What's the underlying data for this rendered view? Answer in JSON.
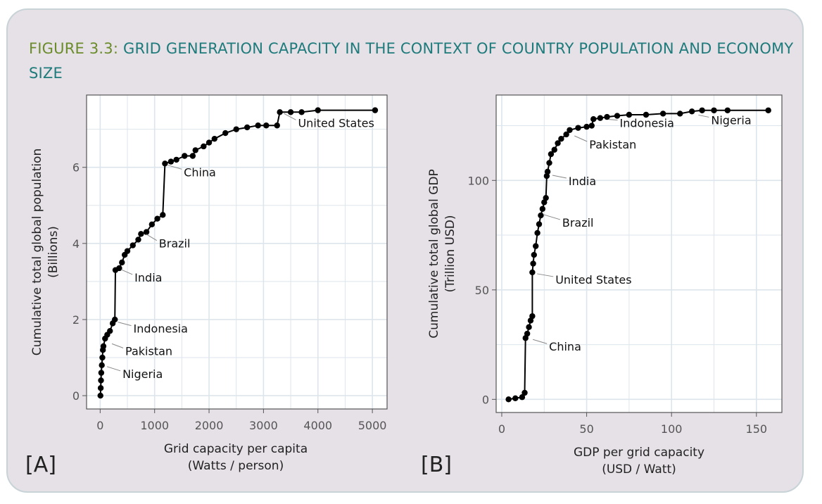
{
  "figure": {
    "number": "FIGURE 3.3:",
    "title": "GRID GENERATION CAPACITY IN THE CONTEXT OF COUNTRY POPULATION AND ECONOMY SIZE",
    "colors": {
      "figure_number": "#6b8c2a",
      "title": "#1e7b7b",
      "background": "#e6e0e7",
      "line": "#000000",
      "grid": "#dde5ec"
    }
  },
  "chart_data": [
    {
      "type": "line",
      "panel": "[A]",
      "xlabel": "Grid capacity per capita",
      "xlabel_units": "(Watts / person)",
      "ylabel": "Cumulative total global population",
      "ylabel_units": "(Billions)",
      "xlim": [
        -250,
        5270
      ],
      "ylim": [
        -0.35,
        7.9
      ],
      "xticks": [
        0,
        1000,
        2000,
        3000,
        4000,
        5000
      ],
      "yticks": [
        0,
        2,
        4,
        6
      ],
      "grid": true,
      "points": [
        [
          5,
          0
        ],
        [
          10,
          0.2
        ],
        [
          15,
          0.4
        ],
        [
          20,
          0.6
        ],
        [
          30,
          0.8
        ],
        [
          40,
          1.0
        ],
        [
          50,
          1.2
        ],
        [
          60,
          1.3
        ],
        [
          90,
          1.5
        ],
        [
          130,
          1.6
        ],
        [
          180,
          1.7
        ],
        [
          230,
          1.9
        ],
        [
          270,
          2.0
        ],
        [
          280,
          3.3
        ],
        [
          350,
          3.35
        ],
        [
          400,
          3.5
        ],
        [
          450,
          3.7
        ],
        [
          500,
          3.8
        ],
        [
          600,
          3.95
        ],
        [
          700,
          4.1
        ],
        [
          750,
          4.25
        ],
        [
          850,
          4.3
        ],
        [
          950,
          4.5
        ],
        [
          1050,
          4.65
        ],
        [
          1150,
          4.75
        ],
        [
          1190,
          6.1
        ],
        [
          1300,
          6.15
        ],
        [
          1400,
          6.2
        ],
        [
          1550,
          6.3
        ],
        [
          1700,
          6.3
        ],
        [
          1750,
          6.45
        ],
        [
          1900,
          6.55
        ],
        [
          2000,
          6.65
        ],
        [
          2100,
          6.75
        ],
        [
          2300,
          6.9
        ],
        [
          2500,
          7.0
        ],
        [
          2700,
          7.05
        ],
        [
          2900,
          7.1
        ],
        [
          3050,
          7.1
        ],
        [
          3250,
          7.1
        ],
        [
          3300,
          7.45
        ],
        [
          3500,
          7.45
        ],
        [
          3700,
          7.45
        ],
        [
          4000,
          7.5
        ],
        [
          5050,
          7.5
        ]
      ],
      "annotations": [
        {
          "text": "United States",
          "x": 3350,
          "y": 7.45
        },
        {
          "text": "China",
          "x": 1200,
          "y": 6.1
        },
        {
          "text": "Brazil",
          "x": 820,
          "y": 4.28
        },
        {
          "text": "India",
          "x": 360,
          "y": 3.35
        },
        {
          "text": "Indonesia",
          "x": 300,
          "y": 1.97
        },
        {
          "text": "Pakistan",
          "x": 190,
          "y": 1.4
        },
        {
          "text": "Nigeria",
          "x": 100,
          "y": 0.8
        }
      ]
    },
    {
      "type": "line",
      "panel": "[B]",
      "xlabel": "GDP per grid capacity",
      "xlabel_units": "(USD / Watt)",
      "ylabel": "Cumulative total global GDP",
      "ylabel_units": "(Trillion USD)",
      "xlim": [
        -3.3,
        165
      ],
      "ylim": [
        -6,
        139
      ],
      "xticks": [
        0,
        50,
        100,
        150
      ],
      "yticks": [
        0,
        50,
        100
      ],
      "grid": true,
      "points": [
        [
          4,
          0
        ],
        [
          8,
          0.5
        ],
        [
          12,
          1
        ],
        [
          13.5,
          3
        ],
        [
          14,
          28
        ],
        [
          15,
          30
        ],
        [
          16,
          33
        ],
        [
          17,
          36
        ],
        [
          18,
          38
        ],
        [
          18,
          58
        ],
        [
          18.5,
          62
        ],
        [
          19,
          66
        ],
        [
          20,
          70
        ],
        [
          21,
          76
        ],
        [
          22,
          80
        ],
        [
          23,
          84
        ],
        [
          24,
          87
        ],
        [
          25,
          90
        ],
        [
          26,
          92
        ],
        [
          26.5,
          102
        ],
        [
          27,
          104
        ],
        [
          28,
          108
        ],
        [
          29,
          112
        ],
        [
          31,
          114
        ],
        [
          33,
          117
        ],
        [
          35,
          119
        ],
        [
          38,
          121
        ],
        [
          40,
          123
        ],
        [
          45,
          124
        ],
        [
          50,
          124.5
        ],
        [
          53,
          125
        ],
        [
          54,
          128
        ],
        [
          58,
          128.5
        ],
        [
          62,
          129
        ],
        [
          68,
          129.5
        ],
        [
          75,
          130
        ],
        [
          85,
          130
        ],
        [
          95,
          130.5
        ],
        [
          105,
          130.5
        ],
        [
          112,
          131.5
        ],
        [
          118,
          132
        ],
        [
          125,
          132
        ],
        [
          133,
          132
        ],
        [
          157,
          132
        ]
      ],
      "annotations": [
        {
          "text": "Nigeria",
          "x": 115,
          "y": 130.5
        },
        {
          "text": "Indonesia",
          "x": 62,
          "y": 128.5
        },
        {
          "text": "Pakistan",
          "x": 42,
          "y": 121
        },
        {
          "text": "India",
          "x": 29,
          "y": 103
        },
        {
          "text": "Brazil",
          "x": 24,
          "y": 85
        },
        {
          "text": "United States",
          "x": 20,
          "y": 58
        },
        {
          "text": "China",
          "x": 17.5,
          "y": 28
        }
      ]
    }
  ]
}
